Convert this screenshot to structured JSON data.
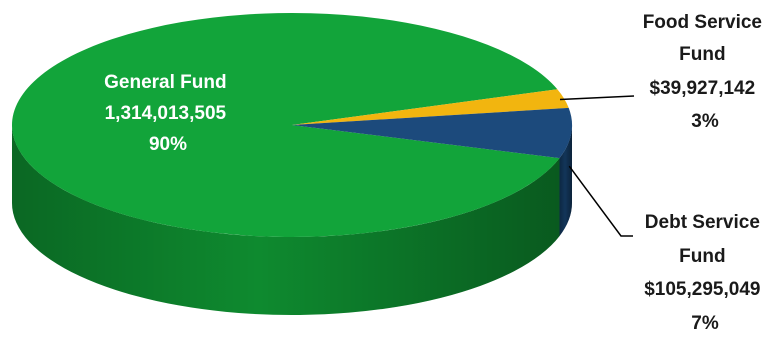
{
  "chart_data": {
    "type": "pie",
    "style": "3d",
    "series": [
      {
        "label_lines": [
          "General Fund",
          "1,314,013,505",
          "90%"
        ],
        "value": 1314013505,
        "percent": 90,
        "color": "#12A43A",
        "side_color": "#0E8A2F"
      },
      {
        "label_lines": [
          "Food Service",
          "Fund",
          "$39,927,142",
          "3%"
        ],
        "value": 39927142,
        "percent": 3,
        "color": "#F2B50F",
        "side_color": "#C99108"
      },
      {
        "label_lines": [
          "Debt Service",
          "Fund",
          "$105,295,049",
          "7%"
        ],
        "value": 105295049,
        "percent": 7,
        "color": "#1C4A7C",
        "side_color": "#123559"
      }
    ]
  }
}
